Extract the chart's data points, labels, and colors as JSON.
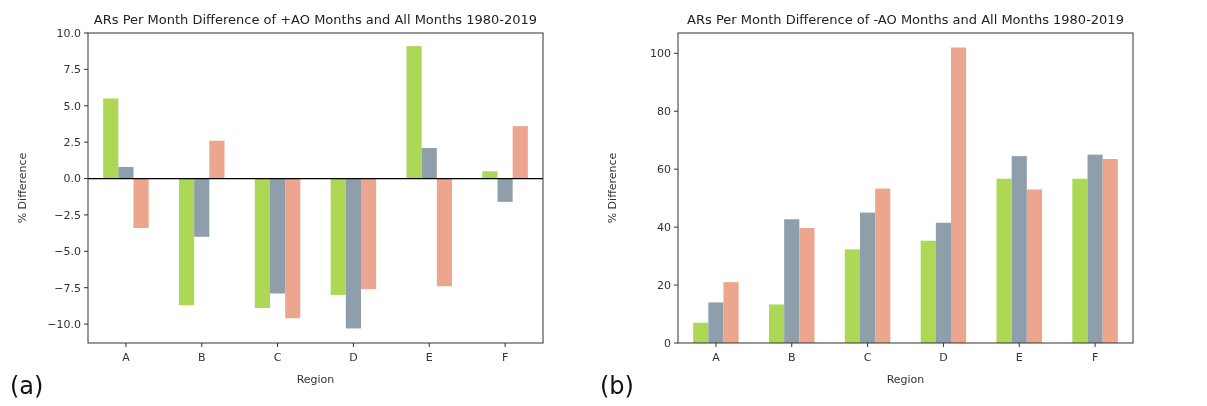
{
  "chart_data": [
    {
      "type": "bar",
      "title": "ARs Per Month Difference of +AO Months and All Months 1980-2019",
      "xlabel": "Region",
      "ylabel": "% Difference",
      "categories": [
        "A",
        "B",
        "C",
        "D",
        "E",
        "F"
      ],
      "series": [
        {
          "color": "#add856",
          "values": [
            5.5,
            -8.7,
            -8.9,
            -8.0,
            9.1,
            0.5
          ]
        },
        {
          "color": "#8f9eab",
          "values": [
            0.8,
            -4.0,
            -7.9,
            -10.3,
            2.1,
            -1.6
          ]
        },
        {
          "color": "#eba68d",
          "values": [
            -3.4,
            2.6,
            -9.6,
            -7.6,
            -7.4,
            3.6
          ]
        }
      ],
      "ylim": [
        -11.3,
        10
      ],
      "yticks": [
        {
          "value": -10,
          "label": "−10.0"
        },
        {
          "value": -7.5,
          "label": "−7.5"
        },
        {
          "value": -5,
          "label": "−5.0"
        },
        {
          "value": -2.5,
          "label": "−2.5"
        },
        {
          "value": 0,
          "label": "0.0"
        },
        {
          "value": 2.5,
          "label": "2.5"
        },
        {
          "value": 5,
          "label": "5.0"
        },
        {
          "value": 7.5,
          "label": "7.5"
        },
        {
          "value": 10,
          "label": "10.0"
        }
      ],
      "ref_lines": [
        {
          "axis": "y",
          "value": 0,
          "color": "#000000"
        }
      ],
      "annotations": [
        "(a)"
      ],
      "grid": false
    },
    {
      "type": "bar",
      "title": "ARs Per Month Difference of -AO Months and All Months 1980-2019",
      "xlabel": "Region",
      "ylabel": "% Difference",
      "categories": [
        "A",
        "B",
        "C",
        "D",
        "E",
        "F"
      ],
      "series": [
        {
          "color": "#add856",
          "values": [
            7,
            13.3,
            32.3,
            35.3,
            56.7,
            56.7
          ]
        },
        {
          "color": "#8f9eab",
          "values": [
            14,
            42.7,
            45,
            41.5,
            64.5,
            65
          ]
        },
        {
          "color": "#eba68d",
          "values": [
            21,
            39.7,
            53.3,
            102,
            53,
            63.5
          ]
        }
      ],
      "ylim": [
        0,
        107
      ],
      "yticks": [
        0,
        20,
        40,
        60,
        80,
        100
      ],
      "annotations": [
        "(b)"
      ],
      "grid": false
    }
  ]
}
